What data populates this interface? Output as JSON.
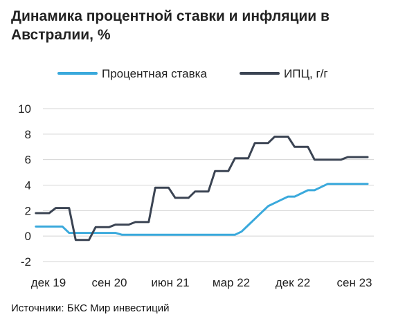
{
  "chart_data": {
    "type": "line",
    "title": "Динамика процентной ставки и инфляции в Австралии, %",
    "xlabel": "",
    "ylabel": "",
    "ylim": [
      -2,
      10
    ],
    "y_ticks": [
      -2,
      0,
      2,
      4,
      6,
      8,
      10
    ],
    "x_ticks": [
      "дек 19",
      "сен 20",
      "июн 21",
      "мар 22",
      "дек 22",
      "сен 23"
    ],
    "x_range": [
      "2019-12",
      "2023-12"
    ],
    "legend_position": "top",
    "grid": true,
    "series": [
      {
        "name": "Процентная ставка",
        "color": "#3aa9dc",
        "x": [
          "2019-10",
          "2019-11",
          "2019-12",
          "2020-01",
          "2020-02",
          "2020-03",
          "2020-04",
          "2020-05",
          "2020-06",
          "2020-07",
          "2020-08",
          "2020-09",
          "2020-10",
          "2020-11",
          "2020-12",
          "2021-06",
          "2021-12",
          "2022-03",
          "2022-04",
          "2022-05",
          "2022-06",
          "2022-07",
          "2022-08",
          "2022-09",
          "2022-10",
          "2022-11",
          "2022-12",
          "2023-01",
          "2023-02",
          "2023-03",
          "2023-04",
          "2023-05",
          "2023-06",
          "2023-07",
          "2023-08",
          "2023-09",
          "2023-10",
          "2023-11",
          "2023-12"
        ],
        "values": [
          0.75,
          0.75,
          0.75,
          0.75,
          0.75,
          0.25,
          0.25,
          0.25,
          0.25,
          0.25,
          0.25,
          0.25,
          0.25,
          0.1,
          0.1,
          0.1,
          0.1,
          0.1,
          0.1,
          0.35,
          0.85,
          1.35,
          1.85,
          2.35,
          2.6,
          2.85,
          3.1,
          3.1,
          3.35,
          3.6,
          3.6,
          3.85,
          4.1,
          4.1,
          4.1,
          4.1,
          4.1,
          4.1,
          4.1
        ]
      },
      {
        "name": "ИПЦ, г/г",
        "color": "#3b4453",
        "x": [
          "2019-10",
          "2019-11",
          "2019-12",
          "2020-01",
          "2020-02",
          "2020-03",
          "2020-04",
          "2020-05",
          "2020-06",
          "2020-07",
          "2020-08",
          "2020-09",
          "2020-10",
          "2020-11",
          "2020-12",
          "2021-01",
          "2021-02",
          "2021-03",
          "2021-04",
          "2021-05",
          "2021-06",
          "2021-07",
          "2021-08",
          "2021-09",
          "2021-10",
          "2021-11",
          "2021-12",
          "2022-01",
          "2022-02",
          "2022-03",
          "2022-04",
          "2022-05",
          "2022-06",
          "2022-07",
          "2022-08",
          "2022-09",
          "2022-10",
          "2022-11",
          "2022-12",
          "2023-01",
          "2023-02",
          "2023-03",
          "2023-04",
          "2023-05",
          "2023-06",
          "2023-07",
          "2023-08",
          "2023-09",
          "2023-10",
          "2023-11",
          "2023-12"
        ],
        "values": [
          1.8,
          1.8,
          1.8,
          2.2,
          2.2,
          2.2,
          -0.3,
          -0.3,
          -0.3,
          0.7,
          0.7,
          0.7,
          0.9,
          0.9,
          0.9,
          1.1,
          1.1,
          1.1,
          3.8,
          3.8,
          3.8,
          3.0,
          3.0,
          3.0,
          3.5,
          3.5,
          3.5,
          5.1,
          5.1,
          5.1,
          6.1,
          6.1,
          6.1,
          7.3,
          7.3,
          7.3,
          7.8,
          7.8,
          7.8,
          7.0,
          7.0,
          7.0,
          6.0,
          6.0,
          6.0,
          6.0,
          6.0,
          6.2,
          6.2,
          6.2,
          6.2
        ]
      }
    ]
  },
  "footer": {
    "source": "Источники: БКС Мир инвестиций"
  }
}
